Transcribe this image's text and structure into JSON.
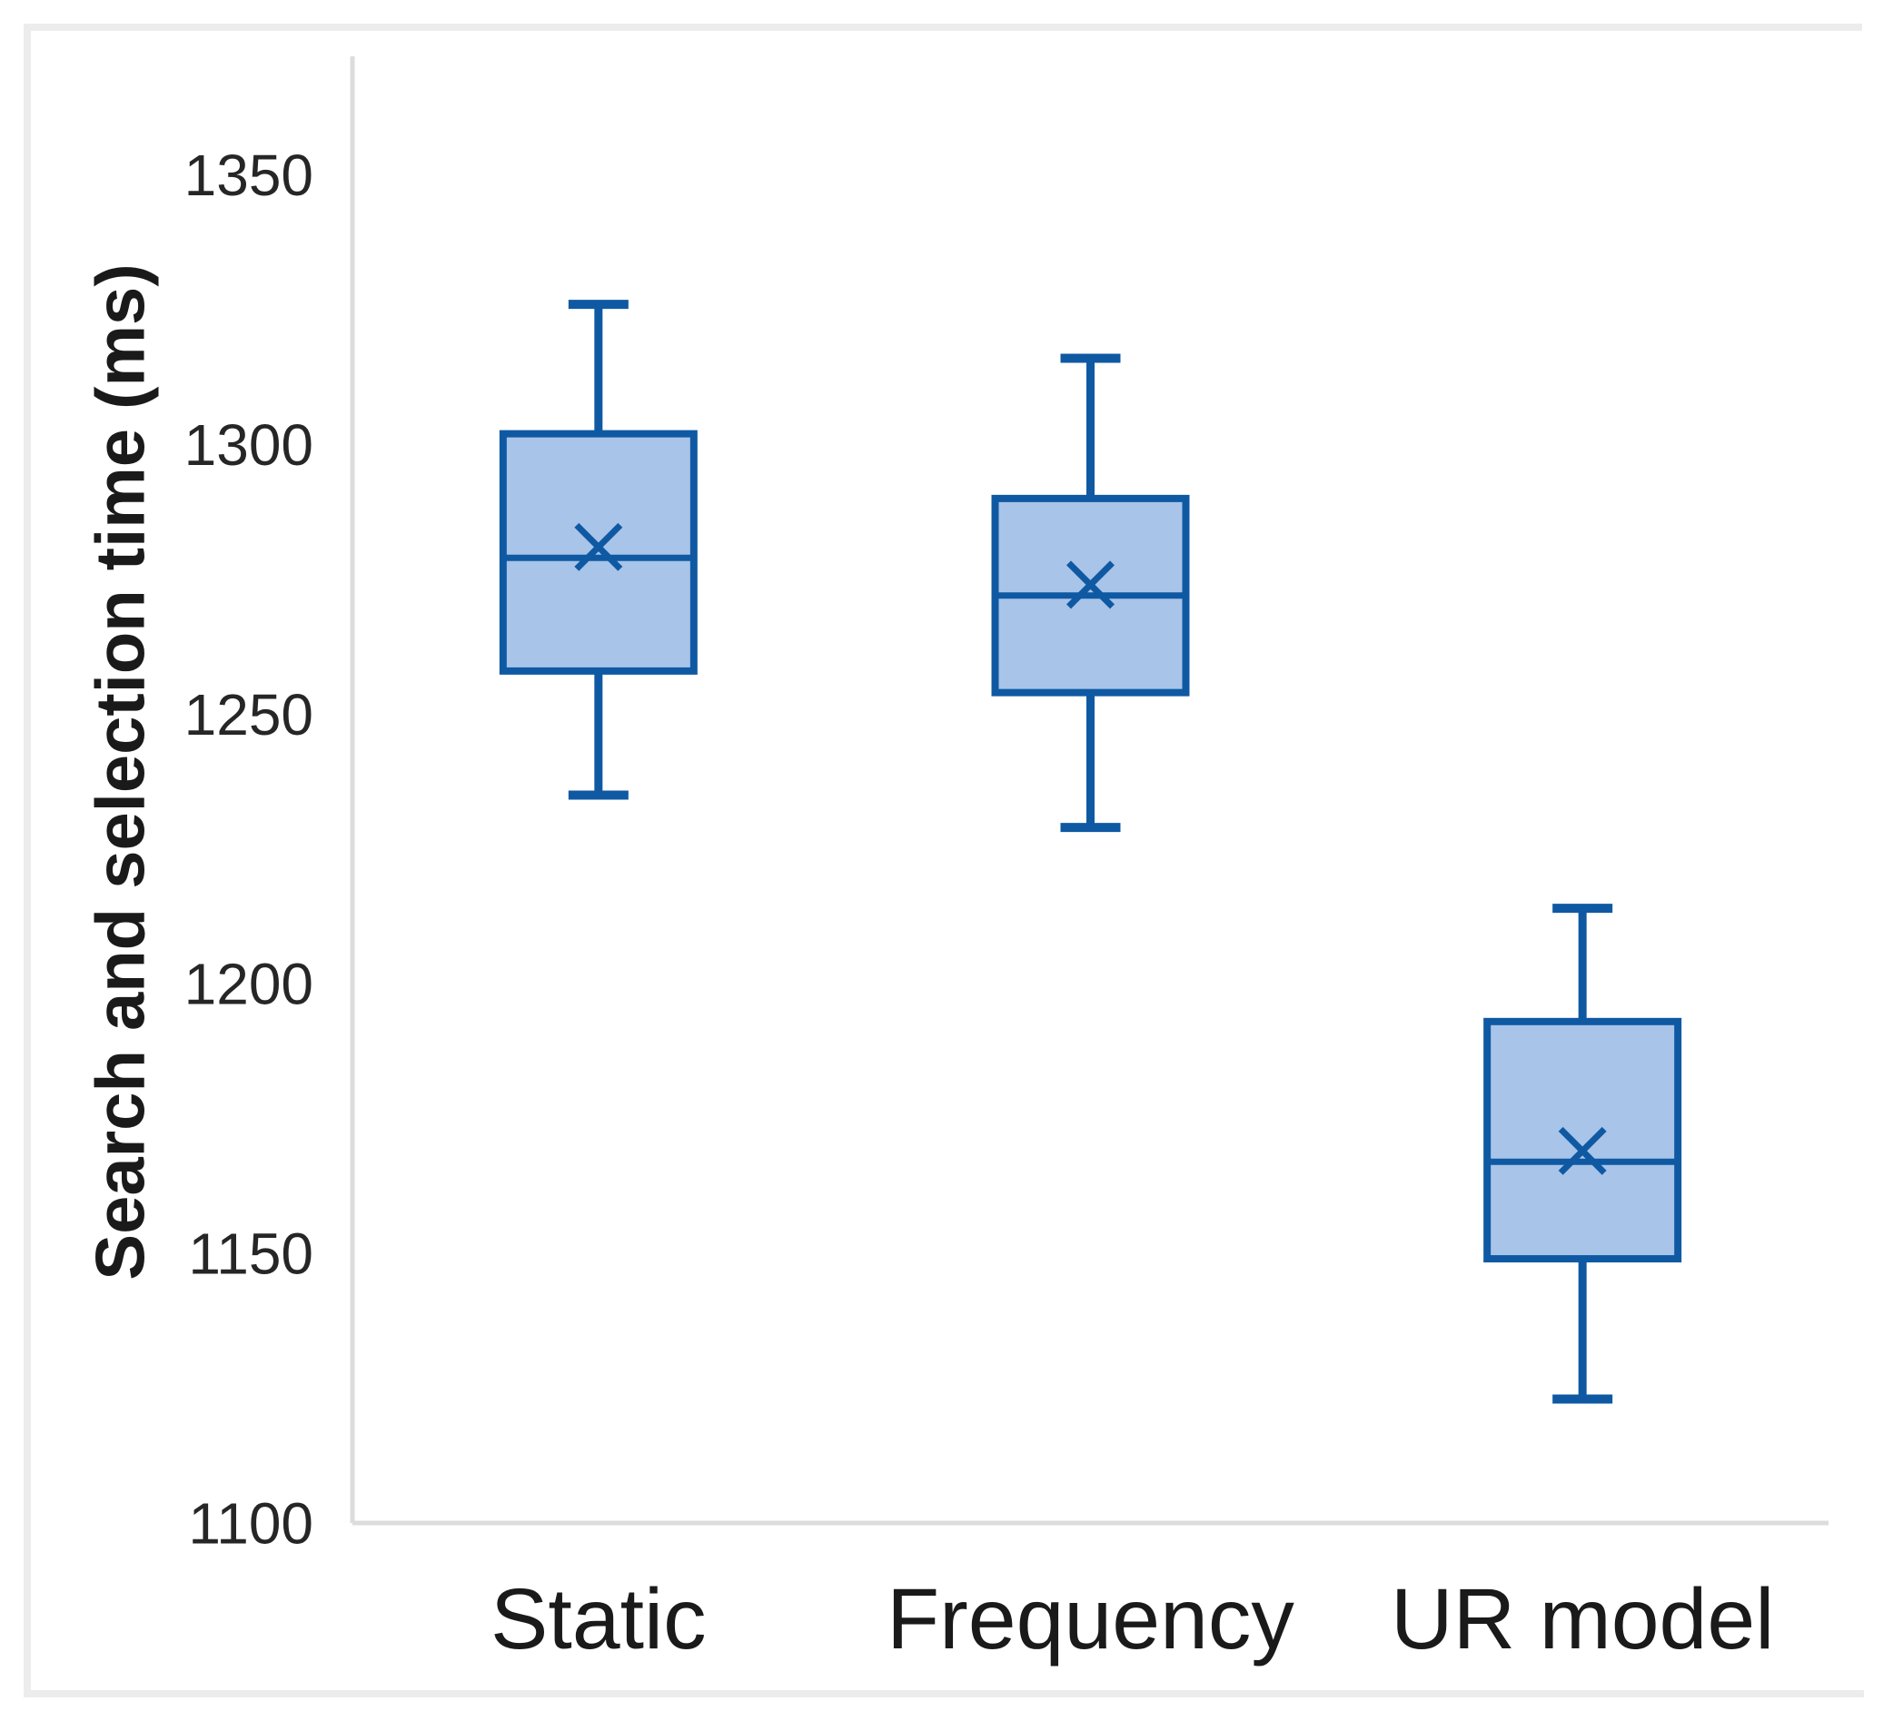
{
  "figure": {
    "background": "#ffffff",
    "frame_color": "#ececec"
  },
  "chart_data": {
    "type": "boxplot",
    "title": "",
    "xlabel": "",
    "ylabel": "Search and selection time (ms)",
    "ylim": [
      1100,
      1372
    ],
    "yticks": [
      1100,
      1150,
      1200,
      1250,
      1300,
      1350
    ],
    "grid": false,
    "legend_position": "none",
    "categories": [
      "Static",
      "Frequency",
      "UR model"
    ],
    "series": [
      {
        "category": "Static",
        "whisker_low": 1235,
        "q1": 1258,
        "median": 1279,
        "mean": 1281,
        "q3": 1302,
        "whisker_high": 1326
      },
      {
        "category": "Frequency",
        "whisker_low": 1229,
        "q1": 1254,
        "median": 1272,
        "mean": 1274,
        "q3": 1290,
        "whisker_high": 1316
      },
      {
        "category": "UR model",
        "whisker_low": 1123,
        "q1": 1149,
        "median": 1167,
        "mean": 1169,
        "q3": 1193,
        "whisker_high": 1214
      }
    ],
    "colors": {
      "box_fill": "#a8c4e8",
      "box_line": "#0f59a3",
      "axis_line": "#dcdcdc",
      "tick_text": "#262626",
      "label_text": "#1a1a1a"
    }
  }
}
